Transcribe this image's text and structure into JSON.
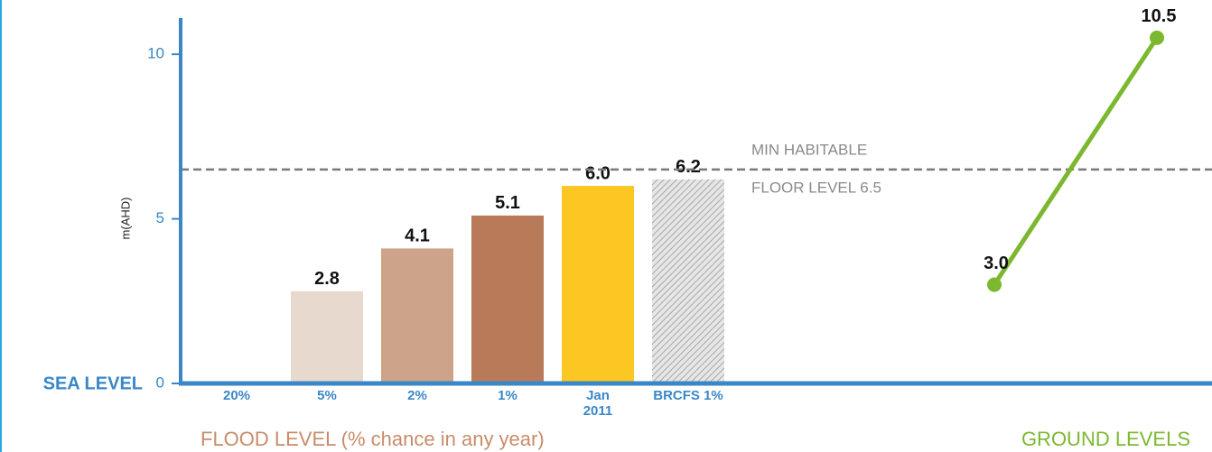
{
  "chart_data": {
    "type": "bar",
    "y_label": "m(AHD)",
    "baseline_label": "SEA LEVEL",
    "x_label": "FLOOD LEVEL (% chance in any year)",
    "categories": [
      "20%",
      "5%",
      "2%",
      "1%",
      "Jan 2011",
      "BRCFS 1%"
    ],
    "values": [
      null,
      2.8,
      4.1,
      5.1,
      6.0,
      6.2
    ],
    "value_labels": [
      null,
      "2.8",
      "4.1",
      "5.1",
      "6.0",
      "6.2"
    ],
    "colors": [
      null,
      "#e8d9ce",
      "#cda38a",
      "#b87a58",
      "#fcc623",
      "hatch"
    ],
    "ylim": [
      0,
      11.1
    ],
    "yticks": [
      0,
      5,
      10
    ],
    "threshold": {
      "value": 6.5,
      "labels": [
        "MIN HABITABLE",
        "FLOOR LEVEL 6.5"
      ]
    },
    "ground": {
      "type": "line",
      "name": "GROUND LEVELS",
      "color": "#7cb82f",
      "values": [
        3.0,
        10.5
      ],
      "value_labels": [
        "3.0",
        "10.5"
      ]
    }
  }
}
